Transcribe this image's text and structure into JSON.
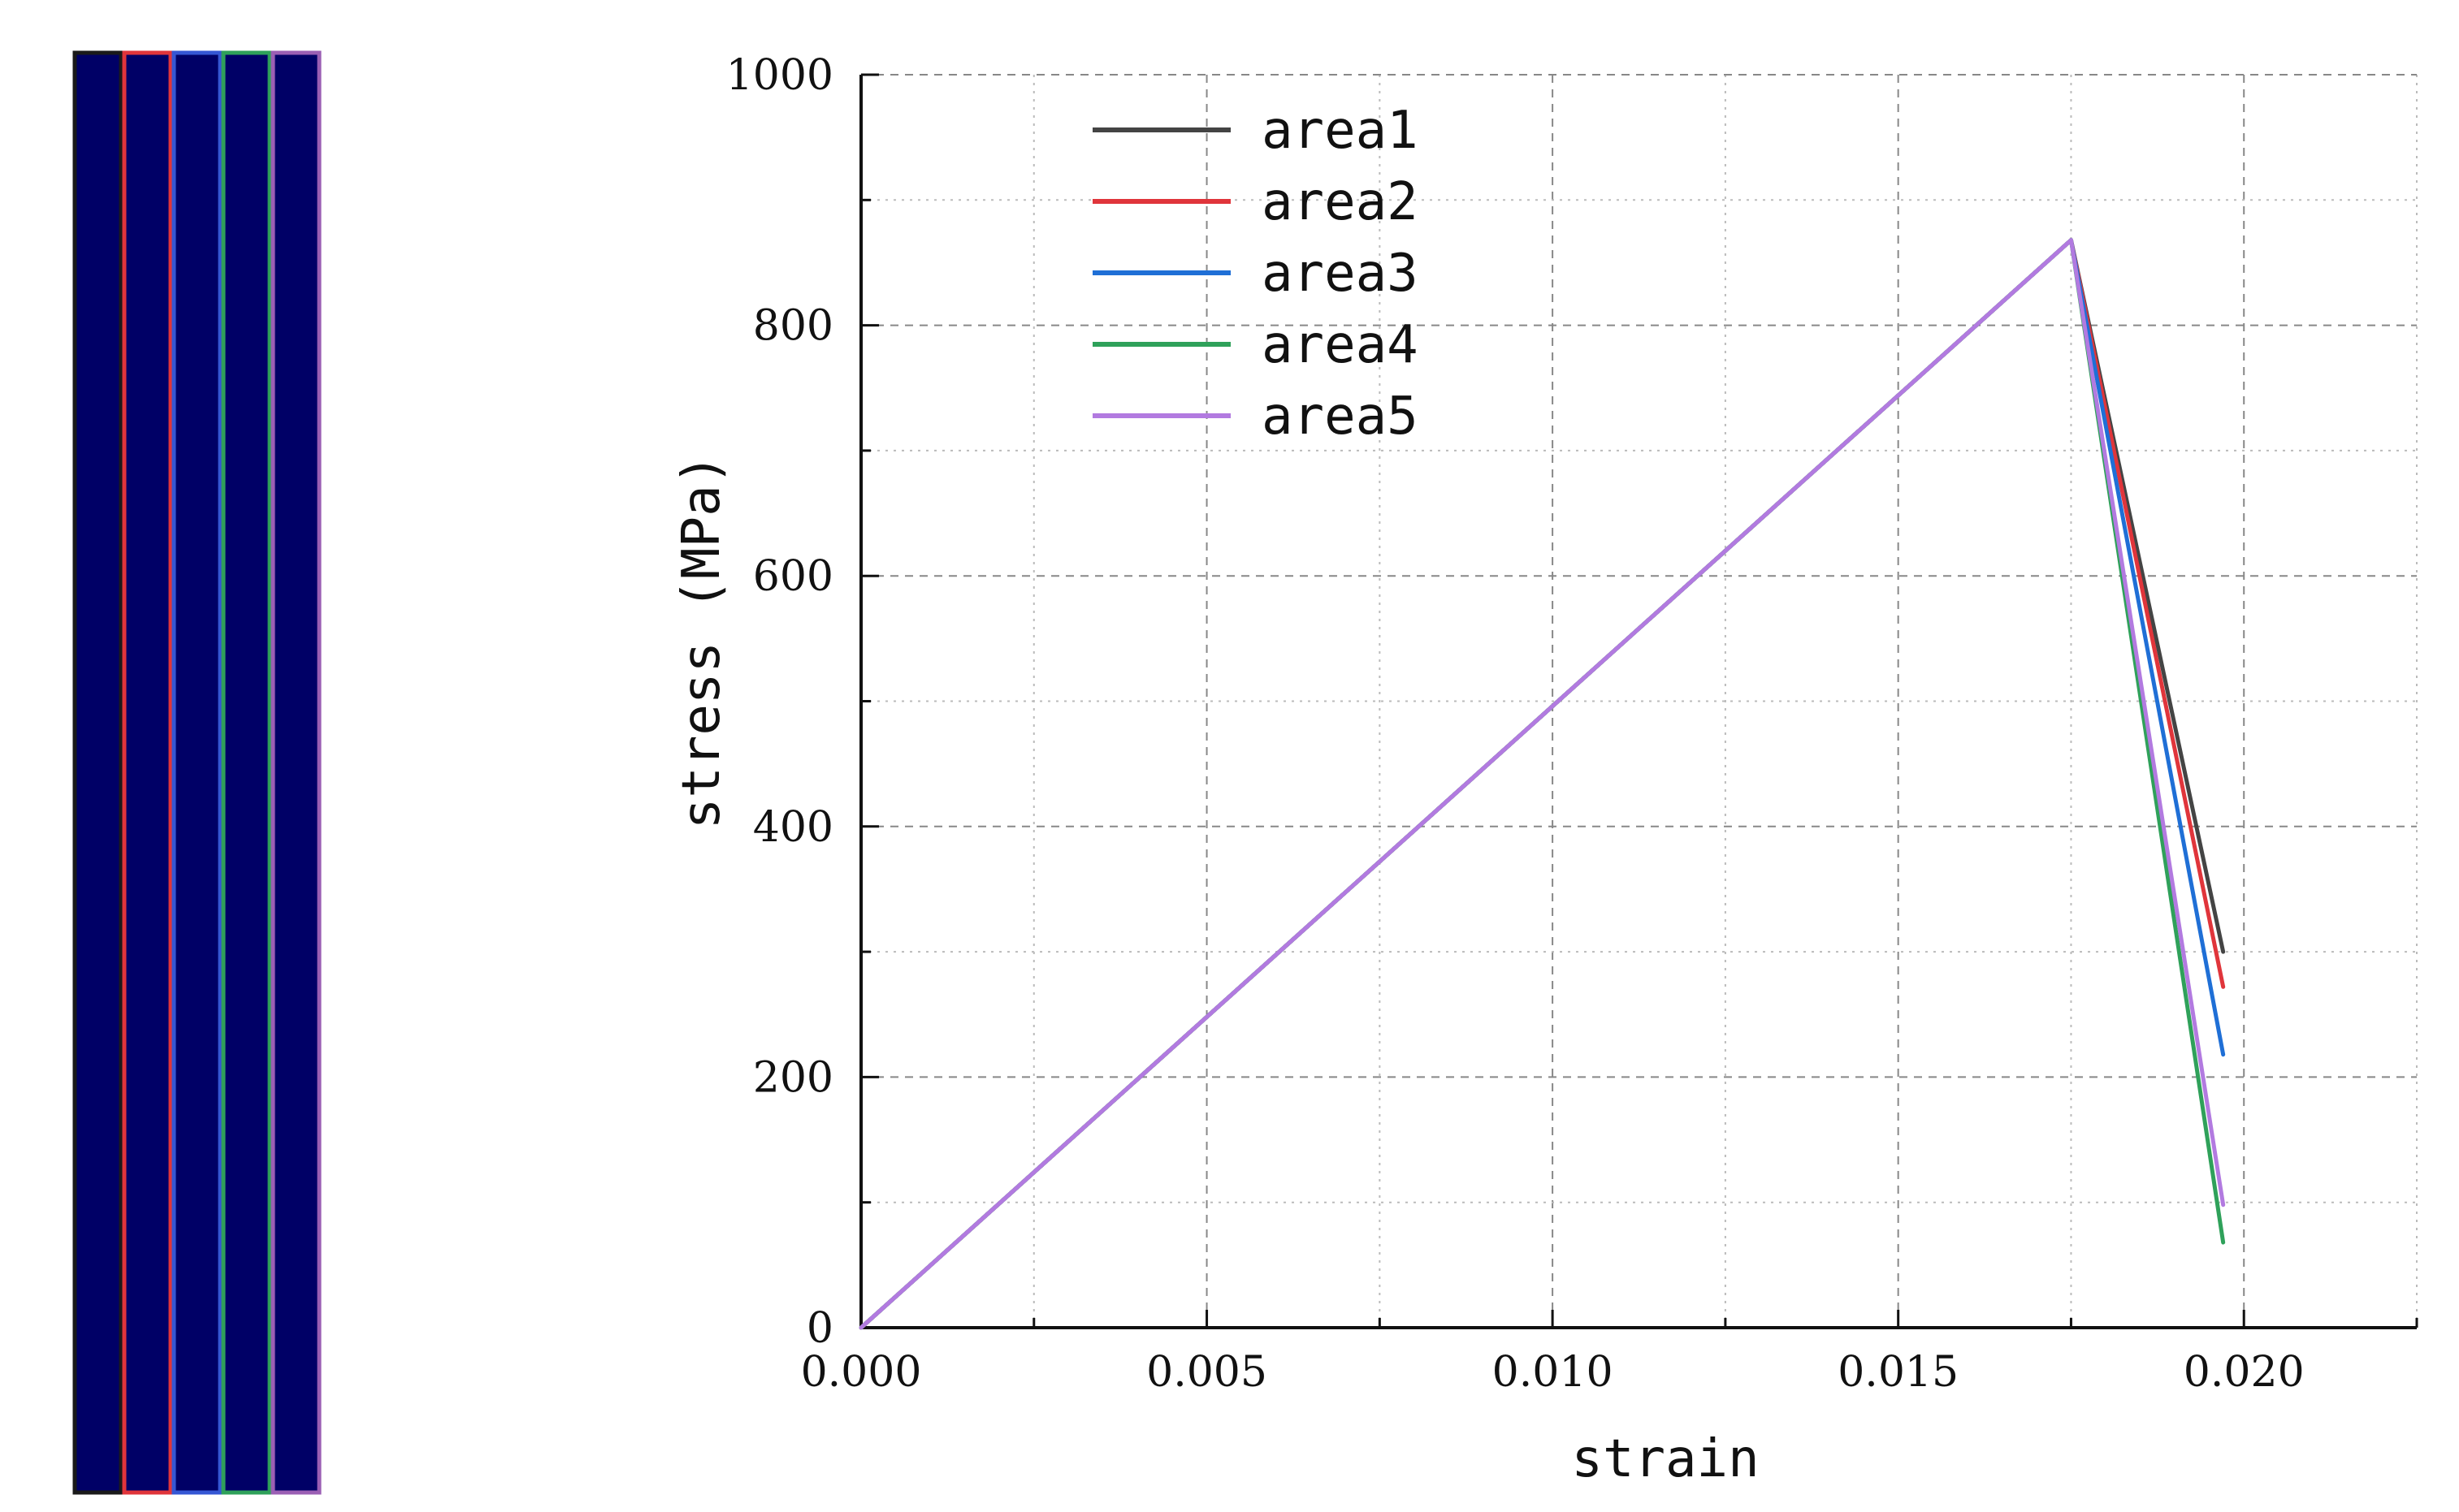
{
  "specimen": {
    "fill_color": "#000066",
    "strips": [
      {
        "name": "area1",
        "color": "#1a1a1a"
      },
      {
        "name": "area2",
        "color": "#e0353b"
      },
      {
        "name": "area3",
        "color": "#3557d4"
      },
      {
        "name": "area4",
        "color": "#2fa15a"
      },
      {
        "name": "area5",
        "color": "#9b5fb4"
      }
    ]
  },
  "chart_data": {
    "type": "line",
    "xlabel": "strain",
    "ylabel": "stress (MPa)",
    "xlim": [
      0.0,
      0.0225
    ],
    "ylim": [
      0,
      1000
    ],
    "x_ticks": [
      0.0,
      0.005,
      0.01,
      0.015,
      0.02
    ],
    "x_tick_labels": [
      "0.000",
      "0.005",
      "0.010",
      "0.015",
      "0.020"
    ],
    "y_ticks": [
      0,
      200,
      400,
      600,
      800,
      1000
    ],
    "y_tick_labels": [
      "0",
      "200",
      "400",
      "600",
      "800",
      "1000"
    ],
    "grid": true,
    "legend_position": "top-left",
    "series": [
      {
        "name": "area1",
        "color": "#444444",
        "x": [
          0.0,
          0.0175,
          0.0197
        ],
        "y": [
          0,
          868,
          300
        ]
      },
      {
        "name": "area2",
        "color": "#e0353b",
        "x": [
          0.0,
          0.0175,
          0.0197
        ],
        "y": [
          0,
          868,
          272
        ]
      },
      {
        "name": "area3",
        "color": "#1f6fd6",
        "x": [
          0.0,
          0.0175,
          0.0197
        ],
        "y": [
          0,
          868,
          218
        ]
      },
      {
        "name": "area4",
        "color": "#2fa15a",
        "x": [
          0.0,
          0.0175,
          0.0197
        ],
        "y": [
          0,
          868,
          68
        ]
      },
      {
        "name": "area5",
        "color": "#b27ae0",
        "x": [
          0.0,
          0.0175,
          0.0197
        ],
        "y": [
          0,
          868,
          98
        ]
      }
    ]
  }
}
